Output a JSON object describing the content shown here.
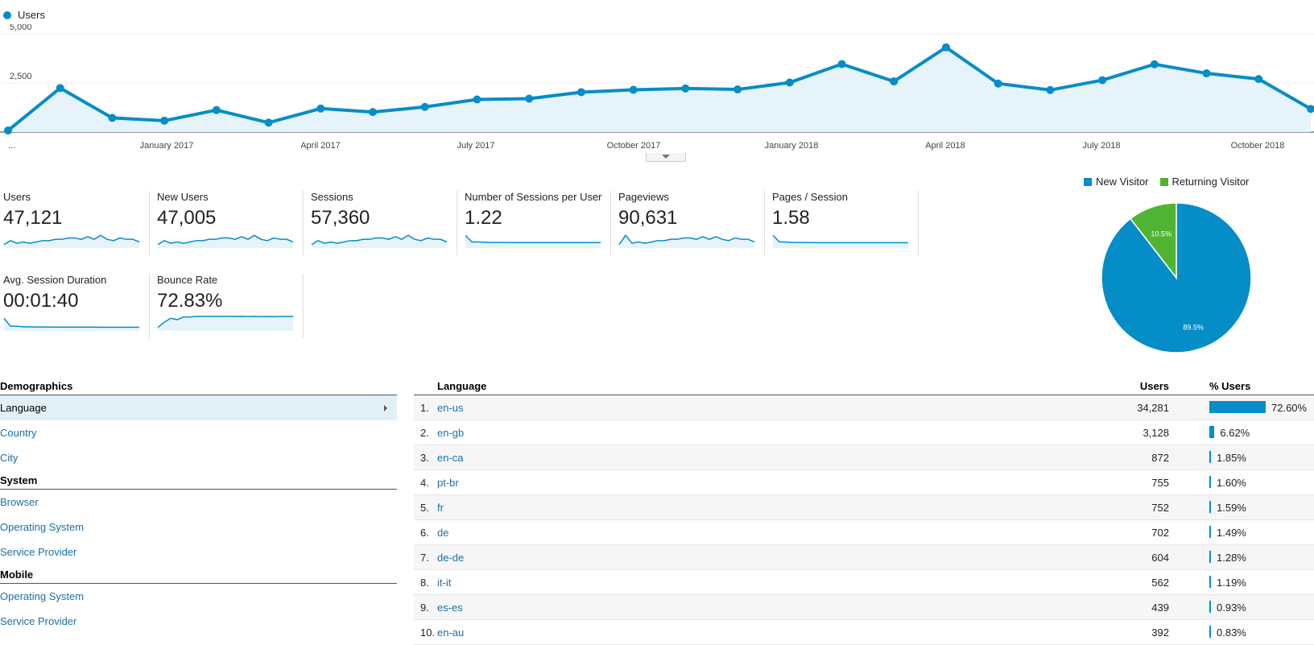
{
  "chart_data": [
    {
      "type": "area",
      "series": [
        {
          "name": "Users",
          "color": "#058dc7",
          "values": [
            80,
            2240,
            720,
            580,
            1120,
            480,
            1200,
            1020,
            1280,
            1660,
            1700,
            2030,
            2150,
            2220,
            2170,
            2520,
            3460,
            2580,
            4310,
            2470,
            2140,
            2640,
            3450,
            2990,
            2700,
            1180
          ]
        }
      ],
      "ylim": [
        0,
        5000
      ],
      "yticks": [
        "2,500",
        "5,000"
      ],
      "xlabels": [
        "...",
        "January 2017",
        "April 2017",
        "July 2017",
        "October 2017",
        "January 2018",
        "April 2018",
        "July 2018",
        "October 2018"
      ]
    },
    {
      "type": "pie",
      "slices": [
        {
          "name": "New Visitor",
          "value": 89.5,
          "label": "89.5%",
          "color": "#058dc7"
        },
        {
          "name": "Returning Visitor",
          "value": 10.5,
          "label": "10.5%",
          "color": "#50b432"
        }
      ]
    },
    {
      "type": "table",
      "columns": [
        "Language",
        "Users",
        "% Users"
      ],
      "rows": [
        {
          "rank": "1.",
          "language": "en-us",
          "users": "34,281",
          "pct": "72.60%",
          "share": 72.6
        },
        {
          "rank": "2.",
          "language": "en-gb",
          "users": "3,128",
          "pct": "6.62%",
          "share": 6.62
        },
        {
          "rank": "3.",
          "language": "en-ca",
          "users": "872",
          "pct": "1.85%",
          "share": 1.85
        },
        {
          "rank": "4.",
          "language": "pt-br",
          "users": "755",
          "pct": "1.60%",
          "share": 1.6
        },
        {
          "rank": "5.",
          "language": "fr",
          "users": "752",
          "pct": "1.59%",
          "share": 1.59
        },
        {
          "rank": "6.",
          "language": "de",
          "users": "702",
          "pct": "1.49%",
          "share": 1.49
        },
        {
          "rank": "7.",
          "language": "de-de",
          "users": "604",
          "pct": "1.28%",
          "share": 1.28
        },
        {
          "rank": "8.",
          "language": "it-it",
          "users": "562",
          "pct": "1.19%",
          "share": 1.19
        },
        {
          "rank": "9.",
          "language": "es-es",
          "users": "439",
          "pct": "0.93%",
          "share": 0.93
        },
        {
          "rank": "10.",
          "language": "en-au",
          "users": "392",
          "pct": "0.83%",
          "share": 0.83
        }
      ]
    }
  ],
  "legend_top": {
    "label": "Users"
  },
  "metrics": [
    {
      "label": "Users",
      "value": "47,121",
      "spark": [
        2,
        5,
        3,
        4,
        3,
        4,
        5,
        5,
        6,
        6,
        7,
        7,
        6,
        8,
        6,
        9,
        6,
        5,
        7,
        6,
        6,
        4
      ]
    },
    {
      "label": "New Users",
      "value": "47,005",
      "spark": [
        2,
        5,
        3,
        4,
        3,
        4,
        5,
        5,
        6,
        6,
        7,
        7,
        6,
        8,
        6,
        9,
        6,
        5,
        7,
        6,
        6,
        4
      ]
    },
    {
      "label": "Sessions",
      "value": "57,360",
      "spark": [
        2,
        5,
        3,
        4,
        3,
        4,
        5,
        5,
        6,
        6,
        7,
        7,
        6,
        8,
        6,
        9,
        6,
        5,
        7,
        6,
        6,
        4
      ]
    },
    {
      "label": "Number of Sessions per User",
      "value": "1.22",
      "spark": [
        9,
        4,
        4,
        3.8,
        3.6,
        3.6,
        3.6,
        3.5,
        3.5,
        3.5,
        3.5,
        3.5,
        3.5,
        3.5,
        3.5,
        3.5,
        3.5,
        3.5,
        3.5,
        3.5,
        3.5,
        3.5
      ]
    },
    {
      "label": "Pageviews",
      "value": "90,631",
      "spark": [
        2,
        9,
        3,
        4,
        3,
        4,
        5,
        5,
        6,
        6,
        7,
        7,
        6,
        8,
        6,
        8,
        6,
        5,
        7,
        6,
        6,
        4
      ]
    },
    {
      "label": "Pages / Session",
      "value": "1.58",
      "spark": [
        9,
        4,
        4,
        3.6,
        3.6,
        3.5,
        3.5,
        3.4,
        3.4,
        3.4,
        3.4,
        3.4,
        3.4,
        3.4,
        3.4,
        3.4,
        3.4,
        3.4,
        3.4,
        3.4,
        3.4,
        3.4
      ]
    },
    {
      "label": "Avg. Session Duration",
      "value": "00:01:40",
      "spark": [
        9,
        3,
        3,
        2.5,
        2.5,
        2.4,
        2.4,
        2.4,
        2.3,
        2.3,
        2.3,
        2.3,
        2.3,
        2.3,
        2.3,
        2.2,
        2.2,
        2.2,
        2.2,
        2.2,
        2.2,
        2.2
      ]
    },
    {
      "label": "Bounce Rate",
      "value": "72.83%",
      "spark": [
        2,
        6,
        9,
        8,
        10,
        10,
        10.5,
        10.5,
        10.5,
        10.5,
        10.5,
        10.5,
        10.4,
        10.5,
        10.3,
        10.5,
        10.2,
        10.4,
        10.2,
        10.4,
        10.4,
        10.4
      ]
    }
  ],
  "nav": {
    "demographics": "Demographics",
    "demo_items": [
      "Language",
      "Country",
      "City"
    ],
    "system": "System",
    "system_items": [
      "Browser",
      "Operating System",
      "Service Provider"
    ],
    "mobile": "Mobile",
    "mobile_items": [
      "Operating System",
      "Service Provider"
    ]
  },
  "table_headers": {
    "language": "Language",
    "users": "Users",
    "pct": "% Users"
  },
  "collapse_icon": "chevron-down-icon"
}
